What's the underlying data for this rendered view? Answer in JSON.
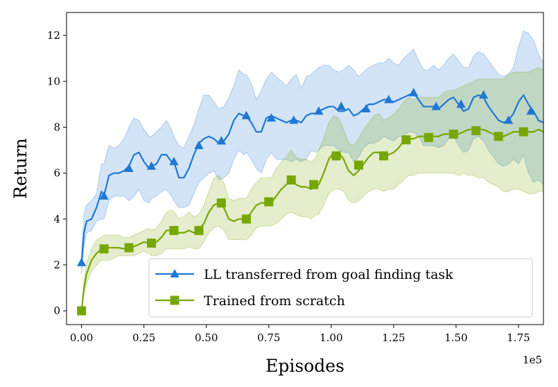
{
  "chart_data": {
    "type": "line",
    "xlabel": "Episodes",
    "ylabel": "Return",
    "x_offset_label": "1e5",
    "xlim": [
      -0.06,
      1.85
    ],
    "ylim": [
      -0.6,
      13.0
    ],
    "xticks": [
      0.0,
      0.25,
      0.5,
      0.75,
      1.0,
      1.25,
      1.5,
      1.75
    ],
    "xtick_labels": [
      "0.00",
      "0.25",
      "0.50",
      "0.75",
      "1.00",
      "1.25",
      "1.50",
      "1.75"
    ],
    "yticks": [
      0,
      2,
      4,
      6,
      8,
      10,
      12
    ],
    "ytick_labels": [
      "0",
      "2",
      "4",
      "6",
      "8",
      "10",
      "12"
    ],
    "legend_position": "lower-right",
    "series": [
      {
        "name": "LL transferred from goal finding task",
        "color": "#1f77d4",
        "marker": "triangle",
        "x": [
          0.0,
          0.01,
          0.02,
          0.04,
          0.06,
          0.08,
          0.09,
          0.11,
          0.13,
          0.15,
          0.17,
          0.19,
          0.21,
          0.23,
          0.25,
          0.27,
          0.28,
          0.3,
          0.32,
          0.34,
          0.36,
          0.37,
          0.39,
          0.41,
          0.43,
          0.45,
          0.47,
          0.49,
          0.51,
          0.53,
          0.55,
          0.57,
          0.59,
          0.61,
          0.63,
          0.65,
          0.66,
          0.68,
          0.7,
          0.72,
          0.74,
          0.76,
          0.78,
          0.8,
          0.82,
          0.84,
          0.86,
          0.88,
          0.9,
          0.92,
          0.94,
          0.95,
          0.97,
          0.99,
          1.01,
          1.03,
          1.05,
          1.07,
          1.09,
          1.11,
          1.13,
          1.15,
          1.17,
          1.19,
          1.21,
          1.23,
          1.25,
          1.27,
          1.29,
          1.31,
          1.33,
          1.35,
          1.37,
          1.39,
          1.41,
          1.43,
          1.45,
          1.47,
          1.49,
          1.51,
          1.53,
          1.55,
          1.57,
          1.59,
          1.61,
          1.63,
          1.65,
          1.67,
          1.69,
          1.71,
          1.73,
          1.75,
          1.77,
          1.79,
          1.81,
          1.83,
          1.85
        ],
        "y": [
          2.1,
          3.4,
          3.9,
          4.0,
          4.5,
          5.2,
          5.0,
          5.9,
          6.0,
          6.0,
          6.1,
          6.3,
          6.8,
          6.9,
          6.5,
          6.2,
          6.3,
          6.4,
          6.8,
          6.8,
          6.5,
          6.5,
          5.8,
          5.8,
          6.2,
          6.8,
          7.3,
          7.5,
          7.6,
          7.5,
          7.3,
          7.4,
          7.7,
          8.3,
          8.6,
          8.5,
          8.5,
          8.2,
          7.8,
          7.8,
          8.4,
          8.5,
          8.4,
          8.3,
          8.2,
          8.3,
          8.3,
          8.2,
          8.5,
          8.6,
          8.6,
          8.7,
          8.8,
          8.9,
          8.9,
          8.7,
          8.7,
          8.8,
          8.5,
          8.6,
          8.8,
          9.0,
          9.0,
          9.1,
          9.2,
          9.2,
          9.1,
          9.2,
          9.3,
          9.4,
          9.5,
          9.2,
          8.9,
          8.9,
          8.9,
          8.8,
          9.0,
          9.2,
          9.3,
          9.0,
          8.7,
          8.8,
          9.3,
          9.4,
          9.3,
          8.9,
          8.6,
          8.3,
          8.2,
          8.3,
          8.6,
          9.1,
          9.4,
          9.0,
          8.7,
          8.3,
          8.2
        ],
        "lower": [
          1.6,
          2.8,
          3.4,
          3.5,
          3.9,
          4.0,
          4.0,
          4.8,
          5.0,
          5.0,
          5.0,
          4.8,
          5.0,
          5.3,
          4.8,
          4.7,
          4.9,
          5.0,
          5.2,
          5.3,
          5.0,
          4.8,
          4.5,
          4.5,
          4.6,
          5.1,
          5.6,
          5.8,
          6.0,
          6.1,
          5.7,
          5.8,
          6.0,
          6.6,
          7.0,
          6.8,
          6.9,
          6.6,
          6.2,
          6.0,
          6.6,
          6.9,
          6.6,
          6.6,
          6.6,
          6.5,
          6.6,
          6.5,
          6.6,
          7.0,
          6.9,
          7.0,
          7.2,
          7.2,
          7.2,
          7.0,
          6.9,
          6.9,
          6.5,
          6.7,
          7.1,
          7.3,
          7.3,
          7.4,
          7.6,
          7.5,
          7.4,
          7.6,
          7.6,
          7.8,
          7.8,
          7.6,
          7.2,
          7.2,
          7.2,
          7.1,
          7.2,
          7.5,
          7.6,
          7.2,
          6.9,
          7.0,
          7.5,
          7.6,
          7.4,
          7.0,
          6.7,
          6.4,
          6.3,
          6.4,
          6.6,
          6.4,
          6.8,
          6.0,
          5.6,
          5.7,
          5.5
        ],
        "upper": [
          2.5,
          4.2,
          4.6,
          4.8,
          5.1,
          6.4,
          6.4,
          7.2,
          7.1,
          7.2,
          7.5,
          8.0,
          8.4,
          8.3,
          7.9,
          7.6,
          7.6,
          7.8,
          8.0,
          8.3,
          7.9,
          7.6,
          7.2,
          7.1,
          7.6,
          8.1,
          8.8,
          9.4,
          9.4,
          9.1,
          8.8,
          8.9,
          9.3,
          9.8,
          10.5,
          10.3,
          10.3,
          9.9,
          9.2,
          9.6,
          10.1,
          10.4,
          10.2,
          10.0,
          9.8,
          10.1,
          10.3,
          9.7,
          10.2,
          10.3,
          10.5,
          10.6,
          10.7,
          10.7,
          10.5,
          10.4,
          10.5,
          10.7,
          10.5,
          10.2,
          10.4,
          10.6,
          10.7,
          10.8,
          10.8,
          11.0,
          10.8,
          10.7,
          11.0,
          11.2,
          11.4,
          10.9,
          10.5,
          10.5,
          10.7,
          10.5,
          10.7,
          11.0,
          11.2,
          10.9,
          10.6,
          10.6,
          11.1,
          11.3,
          11.2,
          10.9,
          10.6,
          10.3,
          10.2,
          10.3,
          10.6,
          11.5,
          12.2,
          12.1,
          11.8,
          11.2,
          10.8
        ],
        "marker_x": [
          0.0,
          0.09,
          0.19,
          0.28,
          0.37,
          0.47,
          0.56,
          0.66,
          0.76,
          0.85,
          0.95,
          1.04,
          1.14,
          1.23,
          1.33,
          1.42,
          1.52,
          1.61,
          1.71,
          1.8
        ],
        "marker_y": [
          2.1,
          5.0,
          6.2,
          6.3,
          6.5,
          7.2,
          7.4,
          8.5,
          8.4,
          8.3,
          8.7,
          8.9,
          8.8,
          9.2,
          9.5,
          8.9,
          9.0,
          9.4,
          8.3,
          8.7
        ]
      },
      {
        "name": "Trained from scratch",
        "color": "#76a700",
        "marker": "square",
        "x": [
          0.0,
          0.01,
          0.02,
          0.04,
          0.06,
          0.08,
          0.09,
          0.11,
          0.13,
          0.15,
          0.17,
          0.19,
          0.21,
          0.23,
          0.25,
          0.27,
          0.28,
          0.3,
          0.32,
          0.34,
          0.36,
          0.37,
          0.39,
          0.41,
          0.43,
          0.45,
          0.47,
          0.49,
          0.51,
          0.53,
          0.55,
          0.57,
          0.59,
          0.61,
          0.63,
          0.65,
          0.66,
          0.68,
          0.7,
          0.72,
          0.74,
          0.76,
          0.78,
          0.8,
          0.82,
          0.84,
          0.86,
          0.88,
          0.9,
          0.92,
          0.94,
          0.95,
          0.97,
          0.99,
          1.01,
          1.03,
          1.05,
          1.07,
          1.09,
          1.11,
          1.13,
          1.15,
          1.17,
          1.19,
          1.21,
          1.23,
          1.25,
          1.27,
          1.29,
          1.31,
          1.33,
          1.35,
          1.37,
          1.39,
          1.41,
          1.43,
          1.45,
          1.47,
          1.49,
          1.51,
          1.53,
          1.55,
          1.57,
          1.59,
          1.61,
          1.63,
          1.65,
          1.67,
          1.69,
          1.71,
          1.73,
          1.75,
          1.77,
          1.79,
          1.81,
          1.83,
          1.85
        ],
        "y": [
          0.0,
          1.0,
          1.6,
          2.2,
          2.5,
          2.7,
          2.7,
          2.75,
          2.75,
          2.75,
          2.7,
          2.72,
          2.8,
          2.9,
          3.0,
          2.95,
          2.9,
          3.0,
          3.2,
          3.5,
          3.5,
          3.5,
          3.4,
          3.4,
          3.5,
          3.4,
          3.5,
          3.8,
          4.3,
          4.6,
          4.7,
          4.5,
          4.0,
          3.9,
          4.0,
          4.0,
          4.0,
          4.3,
          4.6,
          4.7,
          4.7,
          4.7,
          5.0,
          5.3,
          5.5,
          5.7,
          5.5,
          5.4,
          5.4,
          5.3,
          5.5,
          5.5,
          6.0,
          6.6,
          6.9,
          6.9,
          6.6,
          6.1,
          5.9,
          6.1,
          6.4,
          6.7,
          6.9,
          6.9,
          6.7,
          6.8,
          6.9,
          7.1,
          7.4,
          7.5,
          7.5,
          7.6,
          7.6,
          7.6,
          7.6,
          7.6,
          7.7,
          7.7,
          7.7,
          7.7,
          7.8,
          7.9,
          7.9,
          7.9,
          7.9,
          7.8,
          7.7,
          7.6,
          7.6,
          7.7,
          7.8,
          7.8,
          7.8,
          7.8,
          7.8,
          7.9,
          7.8
        ],
        "lower": [
          0.0,
          0.7,
          1.2,
          1.7,
          2.0,
          2.2,
          2.2,
          2.2,
          2.3,
          2.4,
          2.4,
          2.4,
          2.4,
          2.5,
          2.6,
          2.5,
          2.4,
          2.4,
          2.5,
          2.7,
          2.7,
          2.7,
          2.7,
          2.7,
          2.8,
          2.7,
          2.7,
          3.0,
          3.4,
          3.6,
          3.7,
          3.5,
          3.1,
          3.1,
          3.1,
          3.1,
          3.1,
          3.3,
          3.6,
          3.7,
          3.7,
          3.7,
          3.8,
          4.0,
          4.2,
          4.3,
          4.2,
          4.1,
          4.1,
          4.0,
          4.2,
          4.2,
          4.6,
          5.1,
          5.3,
          5.3,
          5.2,
          4.8,
          4.7,
          4.8,
          5.0,
          5.2,
          5.3,
          5.3,
          5.2,
          5.3,
          5.3,
          5.5,
          5.7,
          5.9,
          5.9,
          6.0,
          6.0,
          6.0,
          6.0,
          6.0,
          6.0,
          6.0,
          6.0,
          5.9,
          6.0,
          5.9,
          5.9,
          5.8,
          5.8,
          5.6,
          5.5,
          5.4,
          5.2,
          5.2,
          5.3,
          5.3,
          5.2,
          5.1,
          5.1,
          5.2,
          5.2
        ],
        "upper": [
          0.0,
          1.3,
          2.1,
          2.7,
          3.1,
          3.2,
          3.3,
          3.3,
          3.3,
          3.3,
          3.2,
          3.2,
          3.3,
          3.4,
          3.5,
          3.6,
          3.5,
          3.6,
          3.9,
          4.3,
          4.4,
          4.3,
          4.0,
          4.1,
          4.3,
          4.1,
          4.2,
          4.6,
          5.2,
          5.8,
          5.9,
          5.6,
          4.9,
          4.8,
          4.9,
          4.9,
          4.9,
          5.3,
          5.6,
          5.8,
          5.8,
          5.8,
          6.2,
          6.5,
          6.7,
          7.0,
          6.7,
          6.6,
          6.6,
          6.5,
          6.7,
          7.0,
          7.5,
          8.2,
          8.5,
          8.4,
          7.9,
          7.3,
          7.2,
          7.5,
          7.9,
          8.2,
          8.5,
          8.6,
          8.3,
          8.4,
          8.6,
          8.8,
          9.1,
          9.3,
          9.2,
          9.3,
          9.3,
          9.3,
          9.3,
          9.3,
          9.5,
          9.6,
          9.6,
          9.7,
          9.8,
          9.9,
          10.0,
          10.1,
          10.1,
          10.1,
          10.1,
          10.1,
          10.1,
          10.3,
          10.4,
          10.4,
          10.4,
          10.4,
          10.5,
          10.6,
          10.5
        ],
        "marker_x": [
          0.0,
          0.09,
          0.19,
          0.28,
          0.37,
          0.47,
          0.56,
          0.66,
          0.75,
          0.84,
          0.93,
          1.02,
          1.11,
          1.21,
          1.3,
          1.39,
          1.49,
          1.58,
          1.67,
          1.77
        ],
        "marker_y": [
          0.0,
          2.7,
          2.75,
          2.95,
          3.5,
          3.5,
          4.7,
          4.0,
          4.75,
          5.7,
          5.5,
          6.75,
          6.35,
          6.75,
          7.45,
          7.55,
          7.7,
          7.85,
          7.6,
          7.8
        ]
      }
    ]
  }
}
